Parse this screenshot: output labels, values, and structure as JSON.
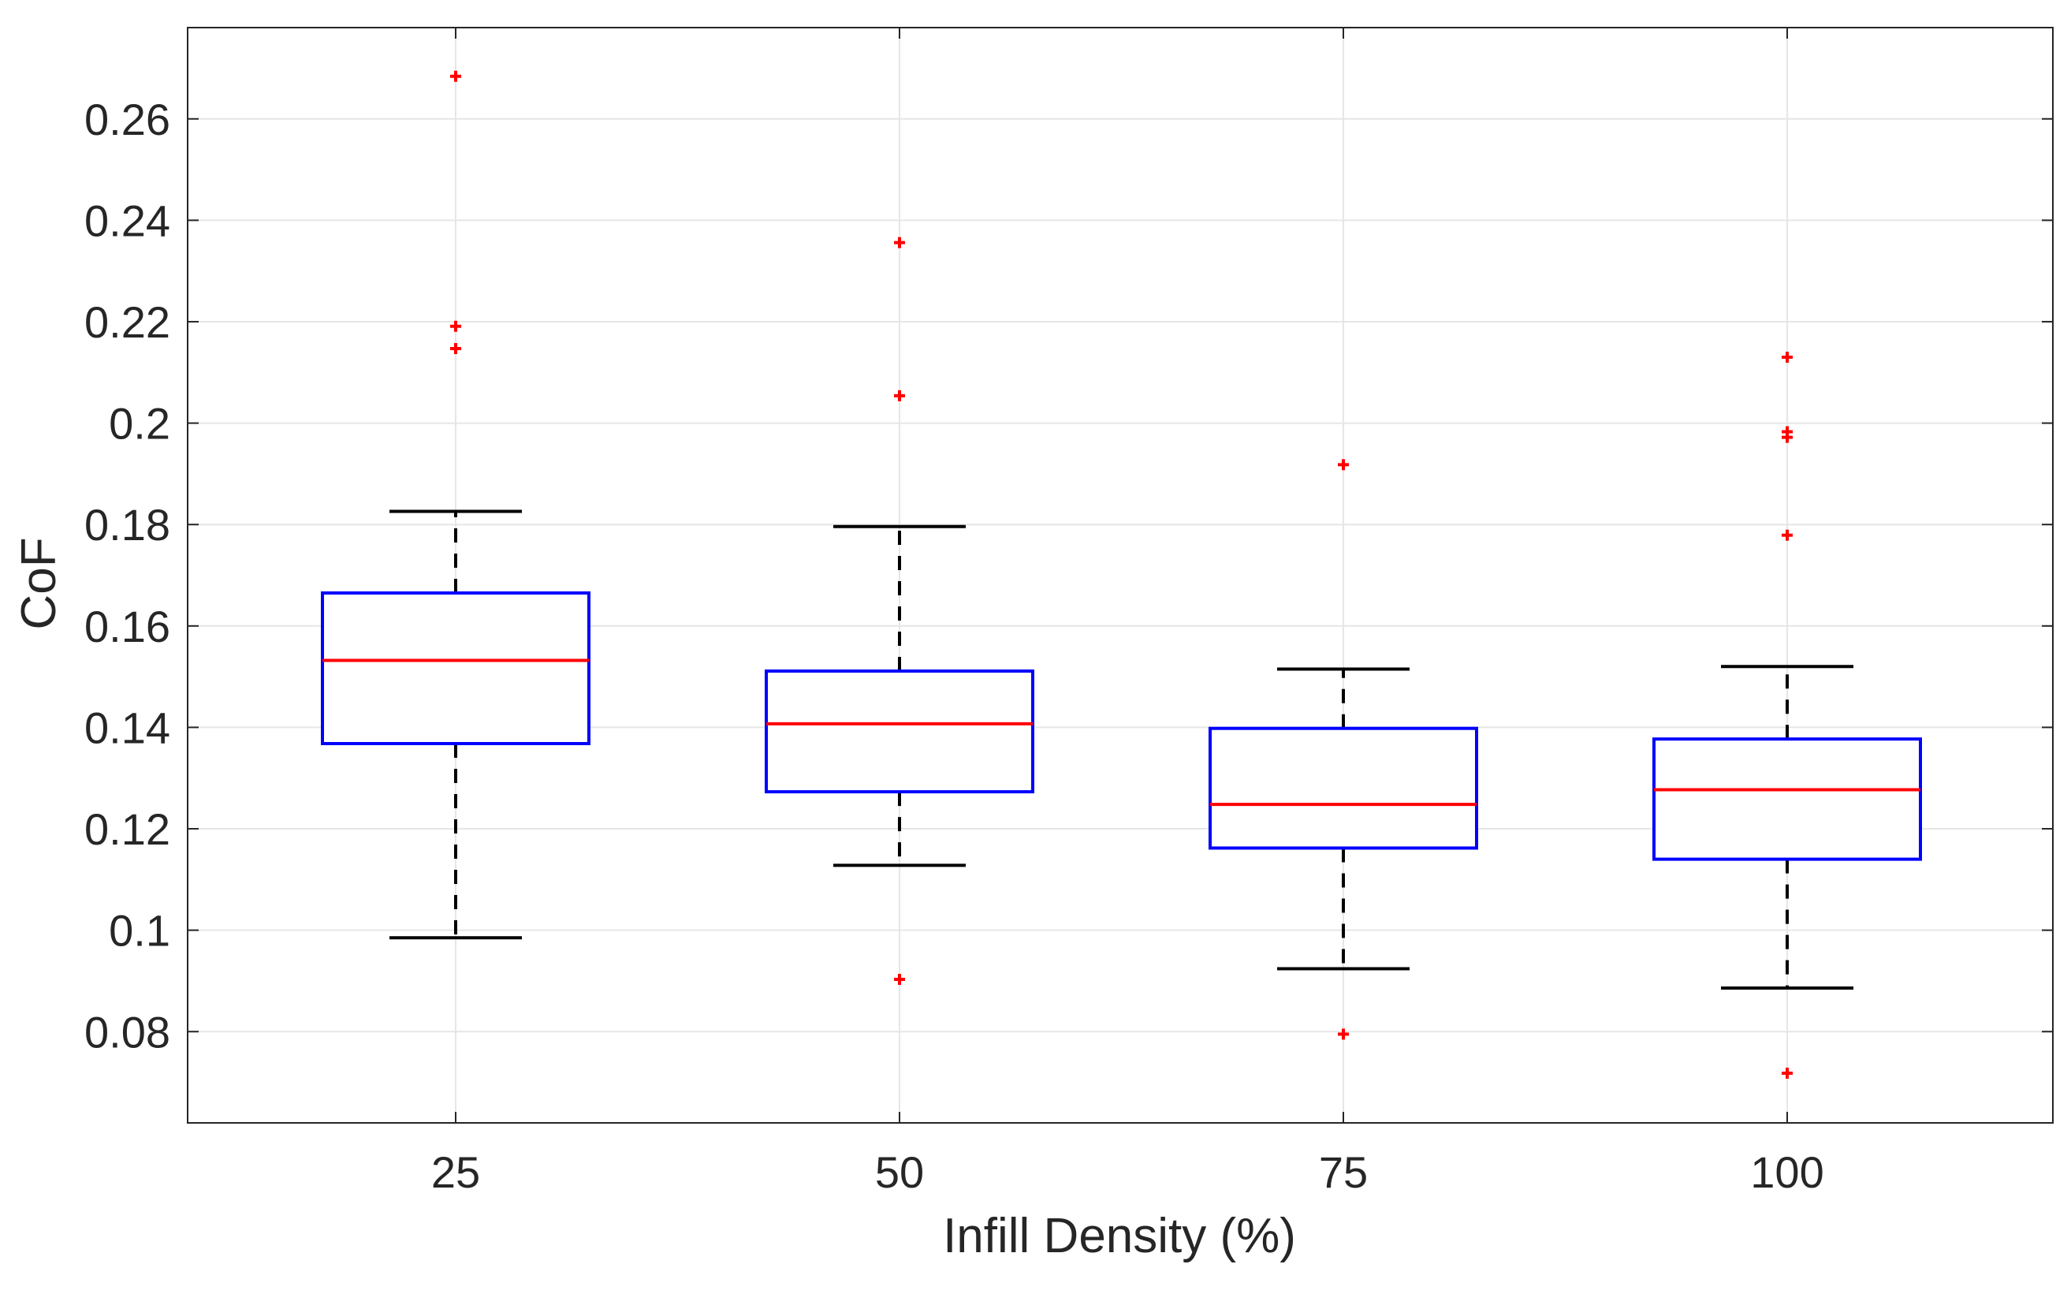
{
  "chart_data": {
    "type": "box",
    "title": "",
    "xlabel": "Infill Density (%)",
    "ylabel": "CoF",
    "categories": [
      "25",
      "50",
      "75",
      "100"
    ],
    "ylim": [
      0.062,
      0.278
    ],
    "yticks": [
      0.08,
      0.1,
      0.12,
      0.14,
      0.16,
      0.18,
      0.2,
      0.22,
      0.24,
      0.26
    ],
    "ytick_labels": [
      "0.08",
      "0.1",
      "0.12",
      "0.14",
      "0.16",
      "0.18",
      "0.2",
      "0.22",
      "0.24",
      "0.26"
    ],
    "grid": true,
    "boxes": [
      {
        "category": "25",
        "whisker_low": 0.0985,
        "q1": 0.1368,
        "median": 0.1532,
        "q3": 0.1665,
        "whisker_high": 0.1826,
        "outliers": [
          0.2147,
          0.2191,
          0.2684
        ]
      },
      {
        "category": "50",
        "whisker_low": 0.1128,
        "q1": 0.1273,
        "median": 0.1407,
        "q3": 0.1511,
        "whisker_high": 0.1796,
        "outliers": [
          0.0903,
          0.2054,
          0.2356
        ]
      },
      {
        "category": "75",
        "whisker_low": 0.0924,
        "q1": 0.1162,
        "median": 0.1248,
        "q3": 0.1398,
        "whisker_high": 0.1515,
        "outliers": [
          0.0795,
          0.1918
        ]
      },
      {
        "category": "100",
        "whisker_low": 0.0886,
        "q1": 0.114,
        "median": 0.1277,
        "q3": 0.1377,
        "whisker_high": 0.152,
        "outliers": [
          0.0718,
          0.1779,
          0.1972,
          0.1983,
          0.213
        ]
      }
    ],
    "colors": {
      "box": "#0000ff",
      "median": "#ff0000",
      "whisker": "#000000",
      "outlier": "#ff0000",
      "grid": "#e6e6e6",
      "axis": "#262626"
    }
  }
}
